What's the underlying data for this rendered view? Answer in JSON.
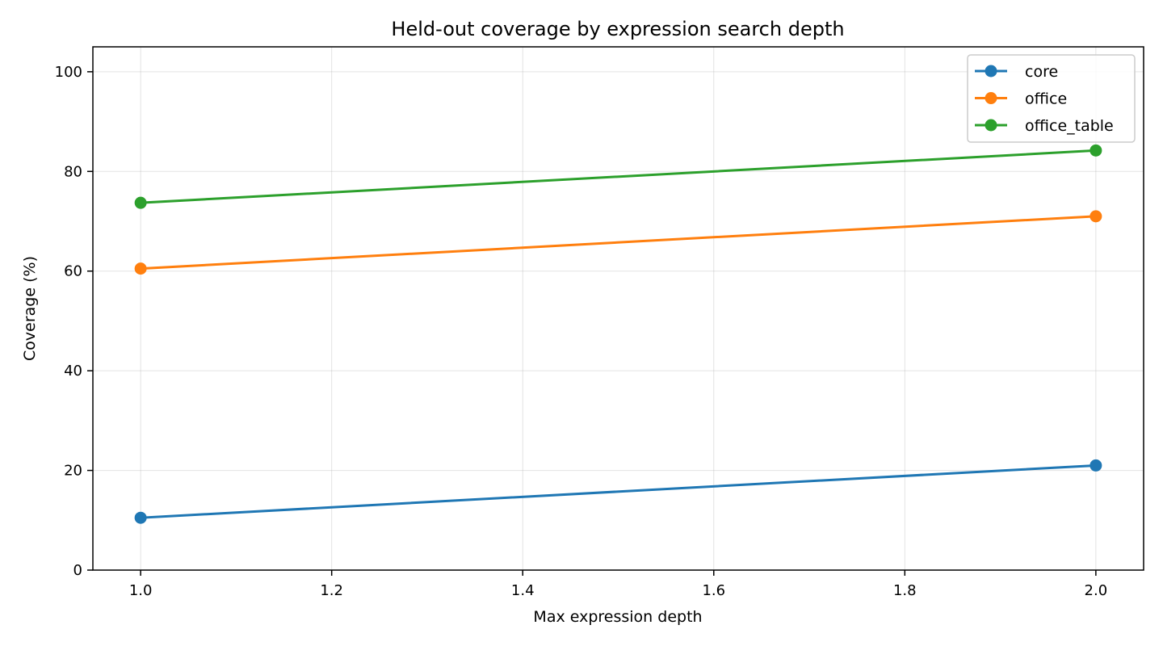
{
  "chart_data": {
    "type": "line",
    "title": "Held-out coverage by expression search depth",
    "xlabel": "Max expression depth",
    "ylabel": "Coverage (%)",
    "xlim": [
      0.95,
      2.05
    ],
    "ylim": [
      0,
      105
    ],
    "x_ticks": [
      1.0,
      1.2,
      1.4,
      1.6,
      1.8,
      2.0
    ],
    "x_tick_labels": [
      "1.0",
      "1.2",
      "1.4",
      "1.6",
      "1.8",
      "2.0"
    ],
    "y_ticks": [
      0,
      20,
      40,
      60,
      80,
      100
    ],
    "y_tick_labels": [
      "0",
      "20",
      "40",
      "60",
      "80",
      "100"
    ],
    "grid": true,
    "legend_position": "top-right",
    "x": [
      1.0,
      2.0
    ],
    "series": [
      {
        "name": "core",
        "color": "#1f77b4",
        "values": [
          10.5,
          21.0
        ]
      },
      {
        "name": "office",
        "color": "#ff7f0e",
        "values": [
          60.5,
          71.0
        ]
      },
      {
        "name": "office_table",
        "color": "#2ca02c",
        "values": [
          73.7,
          84.2
        ]
      }
    ]
  }
}
